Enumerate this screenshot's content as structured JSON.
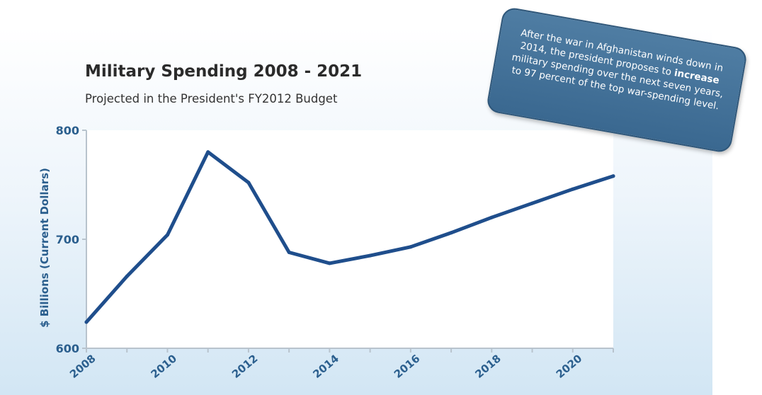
{
  "chart_data": {
    "type": "line",
    "title": "Military Spending 2008 - 2021",
    "subtitle": "Projected in the President's FY2012 Budget",
    "ylabel": "$ Billions  (Current Dollars)",
    "xlabel": "",
    "xlim": [
      2008,
      2021
    ],
    "ylim": [
      600,
      800
    ],
    "xticks": [
      2008,
      2010,
      2012,
      2014,
      2016,
      2018,
      2020
    ],
    "yticks": [
      600,
      700,
      800
    ],
    "grid": false,
    "series": [
      {
        "x": [
          2008,
          2009,
          2010,
          2011,
          2012,
          2013,
          2014,
          2015,
          2016,
          2017,
          2018,
          2019,
          2020,
          2021
        ],
        "values": [
          624,
          666,
          704,
          780,
          752,
          688,
          678,
          685,
          693,
          706,
          720,
          733,
          746,
          758
        ],
        "color": "#1f4e8c"
      }
    ]
  },
  "callout": {
    "text_before": "After the war in Afghanistan winds down in 2014, the president proposes to ",
    "text_bold": "increase",
    "text_after": " military spending over the next seven years, to 97 percent of the top war-spending level."
  },
  "colors": {
    "line": "#1f4e8c",
    "axis_text": "#2b5f8e",
    "callout_bg": "#4472a0"
  }
}
